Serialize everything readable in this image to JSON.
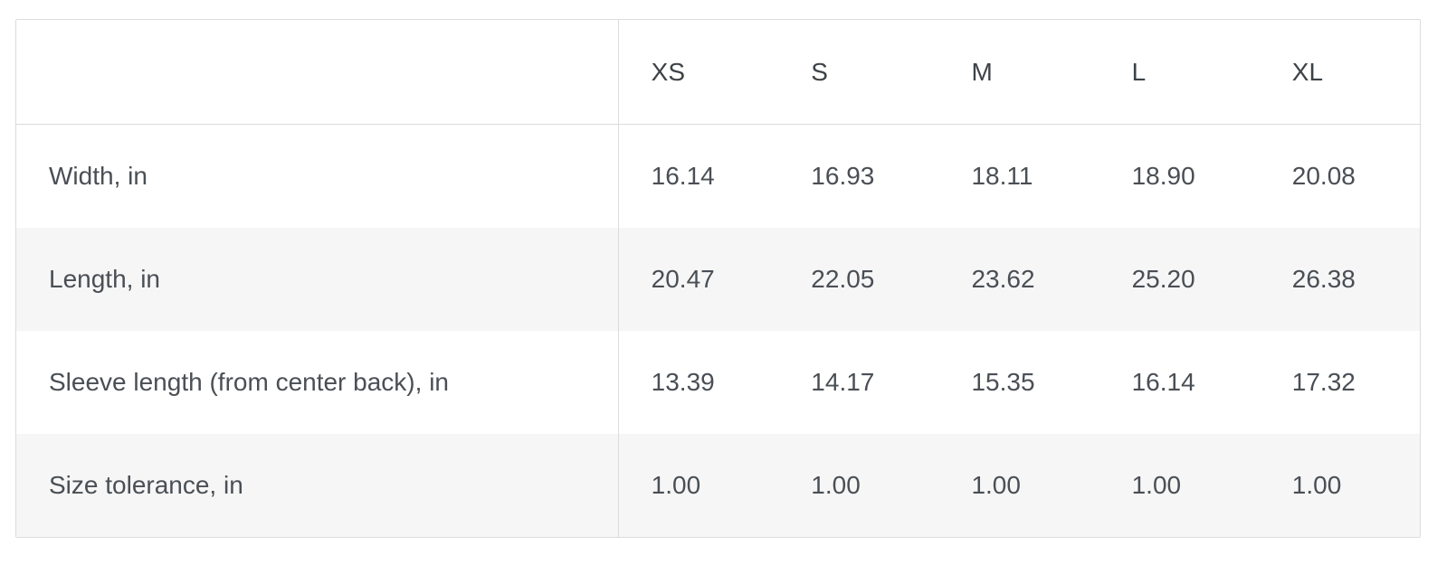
{
  "table": {
    "corner_header": "",
    "sizes": [
      "XS",
      "S",
      "M",
      "L",
      "XL"
    ],
    "rows": [
      {
        "label": "Width, in",
        "values": [
          "16.14",
          "16.93",
          "18.11",
          "18.90",
          "20.08"
        ]
      },
      {
        "label": "Length, in",
        "values": [
          "20.47",
          "22.05",
          "23.62",
          "25.20",
          "26.38"
        ]
      },
      {
        "label": "Sleeve length (from center back), in",
        "values": [
          "13.39",
          "14.17",
          "15.35",
          "16.14",
          "17.32"
        ]
      },
      {
        "label": "Size tolerance, in",
        "values": [
          "1.00",
          "1.00",
          "1.00",
          "1.00",
          "1.00"
        ]
      }
    ]
  },
  "colors": {
    "border": "#dcdcdc",
    "stripe": "#f6f6f6",
    "text": "#4a4f55"
  }
}
